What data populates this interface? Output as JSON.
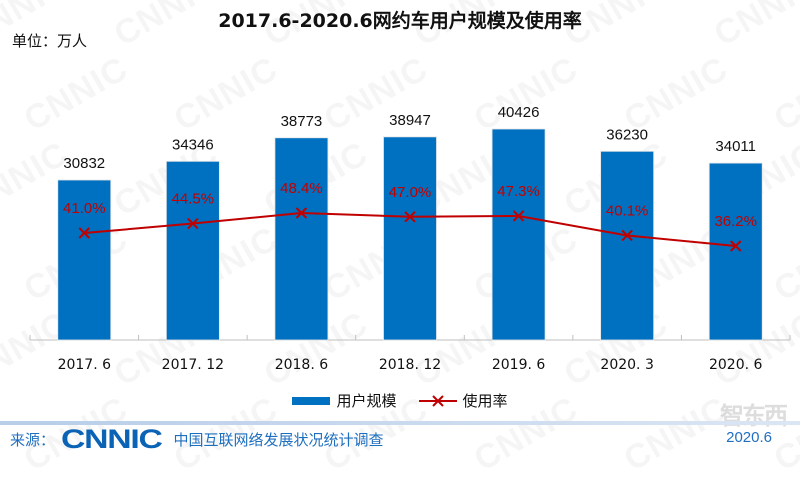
{
  "header": {
    "title": "2017.6-2020.6网约车用户规模及使用率",
    "unit": "单位：万人"
  },
  "legend": {
    "bar_label": "用户规模",
    "line_label": "使用率"
  },
  "footer": {
    "source_label": "来源：",
    "logo_text": "CNNIC",
    "survey_name": "中国互联网络发展状况统计调查",
    "date": "2020.6",
    "brand_mark": "智东西"
  },
  "colors": {
    "bar": "#0070c0",
    "line": "#c00000",
    "line_label": "#c00000",
    "axis": "#bfbfbf"
  },
  "watermark_text": "CNNIC",
  "chart_data": {
    "type": "bar",
    "title": "2017.6-2020.6网约车用户规模及使用率",
    "xlabel": "",
    "ylabel": "单位：万人",
    "categories": [
      "2017. 6",
      "2017. 12",
      "2018. 6",
      "2018. 12",
      "2019. 6",
      "2020. 3",
      "2020. 6"
    ],
    "series": [
      {
        "name": "用户规模",
        "type": "bar",
        "values": [
          30832,
          34346,
          38773,
          38947,
          40426,
          36230,
          34011
        ],
        "labels": [
          "30832",
          "34346",
          "38773",
          "38947",
          "40426",
          "36230",
          "34011"
        ]
      },
      {
        "name": "使用率",
        "type": "line",
        "marker": "x",
        "values": [
          41.0,
          44.5,
          48.4,
          47.0,
          47.3,
          40.1,
          36.2
        ],
        "labels": [
          "41.0%",
          "44.5%",
          "48.4%",
          "47.0%",
          "47.3%",
          "40.1%",
          "36.2%"
        ]
      }
    ],
    "legend_position": "bottom",
    "grid": false
  }
}
